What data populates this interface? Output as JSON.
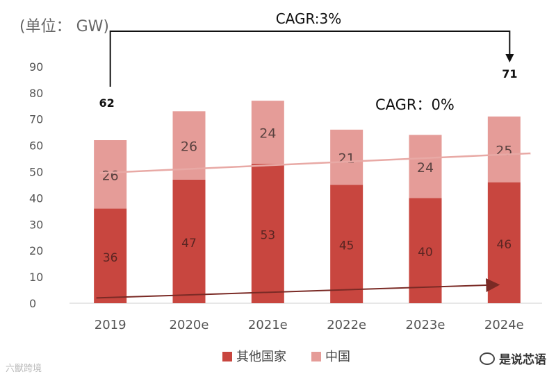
{
  "chart_data": {
    "type": "bar",
    "stacked": true,
    "unit_label": "(单位： GW)",
    "categories": [
      "2019",
      "2020e",
      "2021e",
      "2022e",
      "2023e",
      "2024e"
    ],
    "series": [
      {
        "name": "其他国家",
        "color": "#c8463f",
        "values": [
          36,
          47,
          53,
          45,
          40,
          46
        ]
      },
      {
        "name": "中国",
        "color": "#e59c98",
        "values": [
          26,
          26,
          24,
          21,
          24,
          25
        ]
      }
    ],
    "totals": [
      62,
      null,
      null,
      null,
      null,
      71
    ],
    "y_ticks": [
      0,
      10,
      20,
      30,
      40,
      50,
      60,
      70,
      80,
      90
    ],
    "ylim": [
      0,
      90
    ],
    "legend_position": "bottom",
    "annotations": {
      "cagr_total": "CAGR:3%",
      "cagr_other": "CAGR：0%"
    }
  },
  "watermark": "六獸跨境",
  "brand": "是说芯语"
}
